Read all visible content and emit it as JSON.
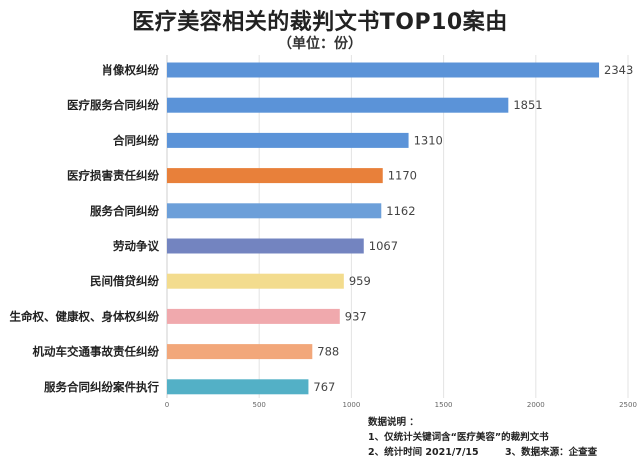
{
  "chart_data": {
    "type": "bar",
    "orientation": "horizontal",
    "title": "医疗美容相关的裁判文书TOP10案由",
    "subtitle": "（单位：份）",
    "categories": [
      "肖像权纠纷",
      "医疗服务合同纠纷",
      "合同纠纷",
      "医疗损害责任纠纷",
      "服务合同纠纷",
      "劳动争议",
      "民间借贷纠纷",
      "生命权、健康权、身体权纠纷",
      "机动车交通事故责任纠纷",
      "服务合同纠纷案件执行"
    ],
    "values": [
      2343,
      1851,
      1310,
      1170,
      1162,
      1067,
      959,
      937,
      788,
      767
    ],
    "colors": [
      "#5b93d8",
      "#5b93d8",
      "#5b93d8",
      "#e8803a",
      "#6c9fd9",
      "#7384c0",
      "#f3dc8e",
      "#f0a9ad",
      "#f2a77a",
      "#53b0c6"
    ],
    "xlim": [
      0,
      2500
    ],
    "xticks": [
      0,
      500,
      1000,
      1500,
      2000,
      2500
    ],
    "grid": true,
    "value_labels": true
  },
  "notes": {
    "heading": "数据说明 ：",
    "line1": "1、仅统计关键词含“医疗美容”的裁判文书",
    "line2": "2、统计时间 2021/7/15",
    "line3": "3、数据来源：企查查"
  }
}
